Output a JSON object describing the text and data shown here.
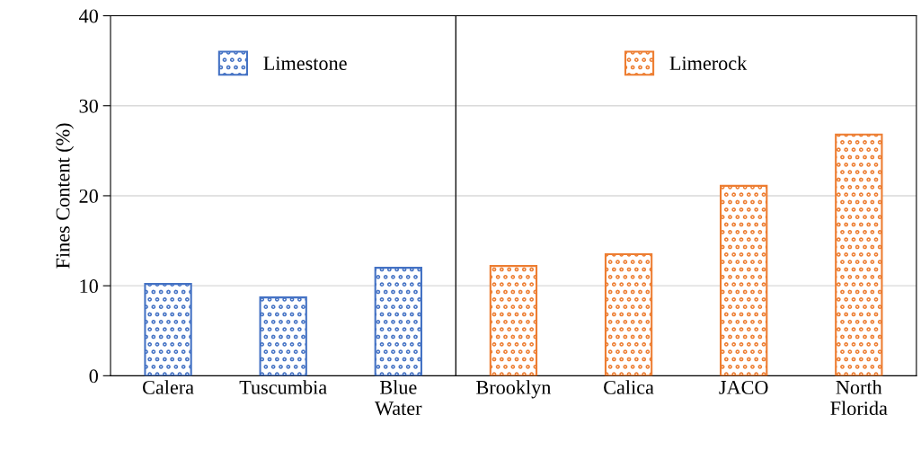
{
  "chart_data": [
    {
      "type": "bar",
      "ylabel": "Fines Content (%)",
      "categories": [
        "Calera",
        "Tuscumbia",
        "Blue\nWater"
      ],
      "series": [
        {
          "name": "Limestone",
          "color": "#4472c4",
          "values": [
            10.2,
            8.7,
            12.0
          ]
        }
      ],
      "ylim": [
        0,
        40
      ],
      "yticks": [
        0,
        10,
        20,
        30,
        40
      ],
      "grid": "y",
      "legend": "top"
    },
    {
      "type": "bar",
      "categories": [
        "Brooklyn",
        "Calica",
        "JACO",
        "North\nFlorida"
      ],
      "series": [
        {
          "name": "Limerock",
          "color": "#ed7d31",
          "values": [
            12.2,
            13.5,
            21.1,
            26.8
          ]
        }
      ],
      "ylim": [
        0,
        40
      ],
      "yticks": [
        0,
        10,
        20,
        30,
        40
      ],
      "grid": "y",
      "legend": "top",
      "tick_labels": "x"
    }
  ]
}
